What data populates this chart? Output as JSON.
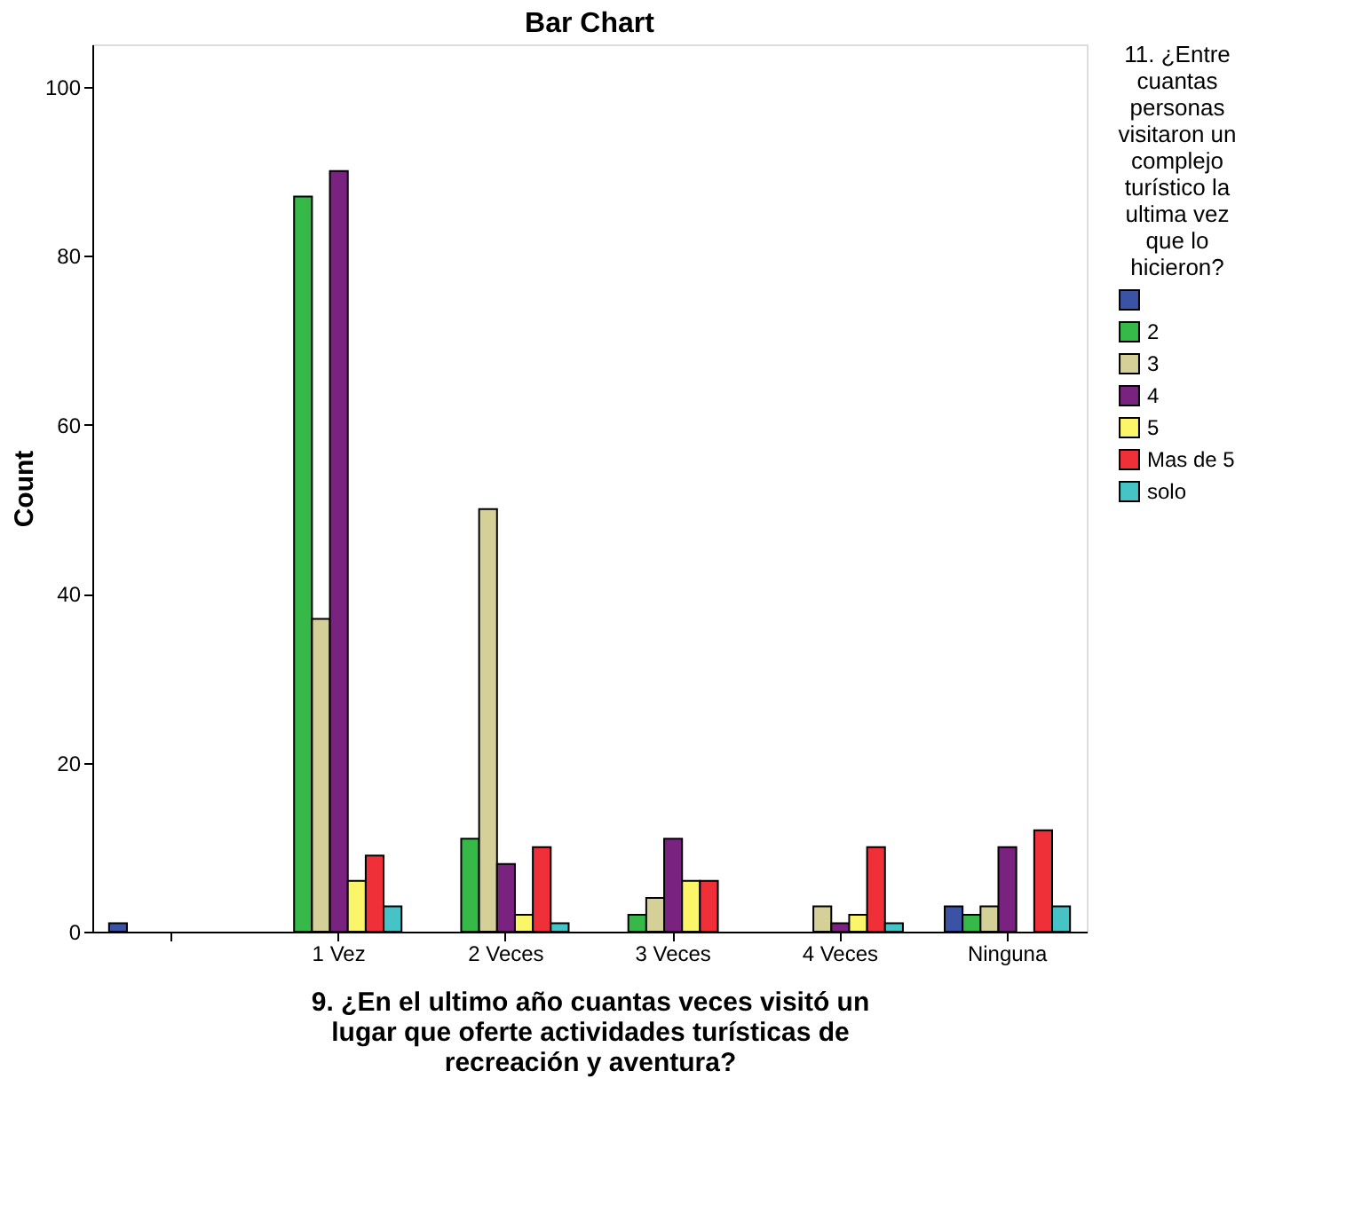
{
  "chart_data": {
    "type": "bar",
    "title": "Bar Chart",
    "xlabel": "9. ¿En el ultimo año cuantas veces visitó un lugar que oferte actividades turísticas de recreación y aventura?",
    "ylabel": "Count",
    "legend_title": "11. ¿Entre cuantas personas visitaron un complejo turístico la ultima vez que lo hicieron?",
    "categories": [
      null,
      "1 Vez",
      "2 Veces",
      "3 Veces",
      "4 Veces",
      "Ninguna"
    ],
    "series": [
      {
        "color": "#3a53a4",
        "values": [
          1,
          null,
          null,
          null,
          null,
          3
        ]
      },
      {
        "name": "2",
        "color": "#37b94a",
        "values": [
          null,
          87,
          11,
          2,
          null,
          2
        ]
      },
      {
        "name": "3",
        "color": "#d5cf98",
        "values": [
          null,
          37,
          50,
          4,
          3,
          3
        ]
      },
      {
        "name": "4",
        "color": "#7a2280",
        "values": [
          null,
          90,
          8,
          11,
          1,
          10
        ]
      },
      {
        "name": "5",
        "color": "#fbf56a",
        "values": [
          null,
          6,
          2,
          6,
          2,
          null
        ]
      },
      {
        "name": "Mas de 5",
        "color": "#ef3038",
        "values": [
          null,
          9,
          10,
          6,
          10,
          12
        ]
      },
      {
        "name": "solo",
        "color": "#45c3c6",
        "values": [
          null,
          3,
          1,
          null,
          1,
          3
        ]
      }
    ],
    "ylim": [
      0,
      105
    ],
    "yticks": [
      0,
      20,
      40,
      60,
      80,
      100
    ],
    "grid": false,
    "legend": "right"
  }
}
